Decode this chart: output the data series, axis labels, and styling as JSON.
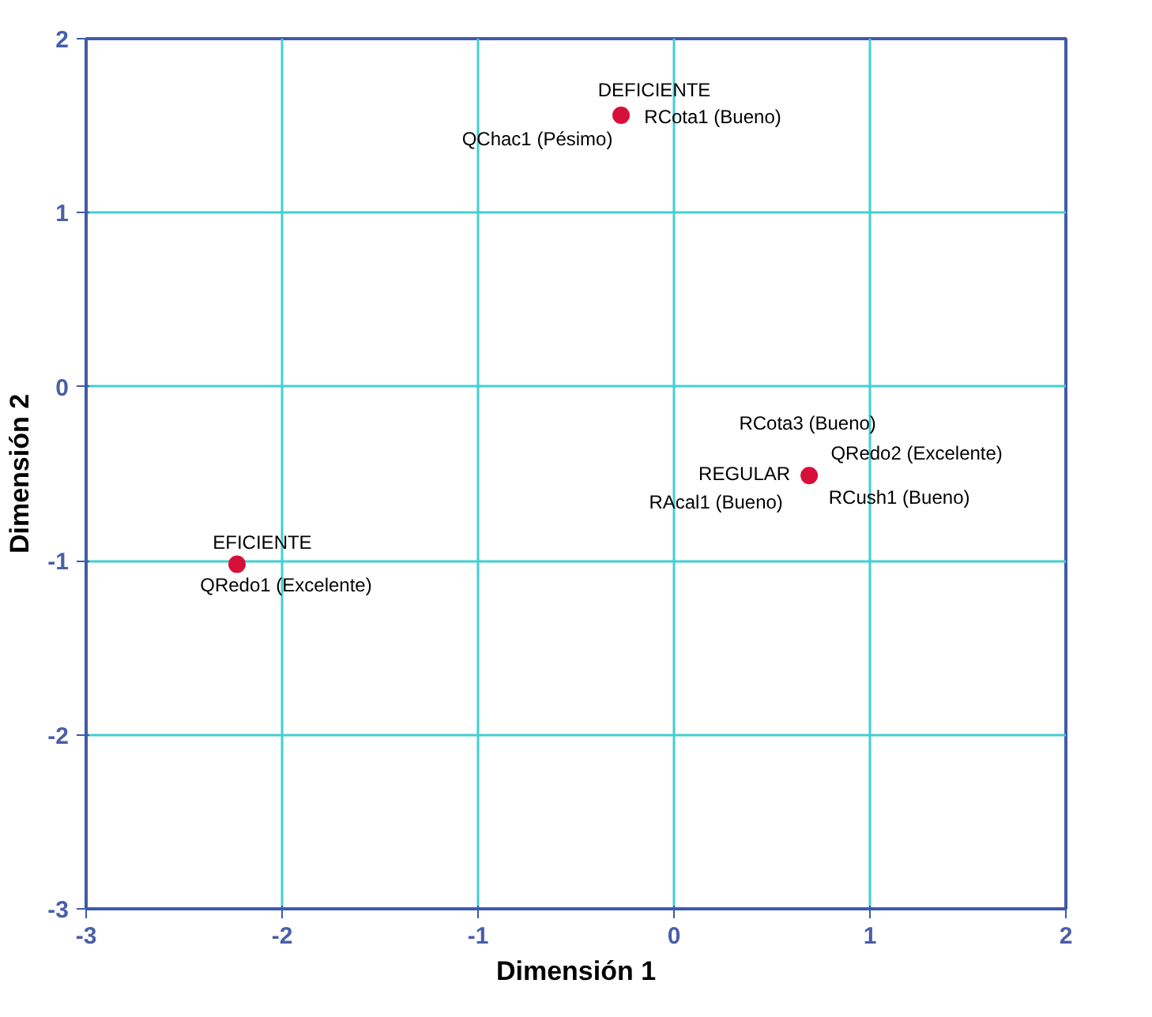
{
  "chart_data": {
    "type": "scatter",
    "xlabel": "Dimensión 1",
    "ylabel": "Dimensión 2",
    "xlim": [
      -3,
      2
    ],
    "ylim": [
      -3,
      2
    ],
    "xticks": [
      -3,
      -2,
      -1,
      0,
      1,
      2
    ],
    "yticks": [
      -3,
      -2,
      -1,
      0,
      1,
      2
    ],
    "grid": true,
    "marker": "circle",
    "series": [
      {
        "color": "#d6103b",
        "x": [
          -0.27,
          0.69,
          -2.23
        ],
        "values": [
          1.56,
          -0.51,
          -1.02
        ]
      }
    ],
    "annotations": [
      {
        "text": "DEFICIENTE",
        "x": -0.27,
        "y": 1.56
      },
      {
        "text": "RCota1 (Bueno)",
        "x": -0.27,
        "y": 1.56
      },
      {
        "text": "QChac1 (Pésimo)",
        "x": -0.27,
        "y": 1.56
      },
      {
        "text": "RCota3 (Bueno)",
        "x": 0.69,
        "y": -0.51
      },
      {
        "text": "QRedo2 (Excelente)",
        "x": 0.69,
        "y": -0.51
      },
      {
        "text": "REGULAR",
        "x": 0.69,
        "y": -0.51
      },
      {
        "text": "RAcal1 (Bueno)",
        "x": 0.69,
        "y": -0.51
      },
      {
        "text": "RCush1 (Bueno)",
        "x": 0.69,
        "y": -0.51
      },
      {
        "text": "EFICIENTE",
        "x": -2.23,
        "y": -1.02
      },
      {
        "text": "QRedo1 (Excelente)",
        "x": -2.23,
        "y": -1.02
      }
    ]
  }
}
